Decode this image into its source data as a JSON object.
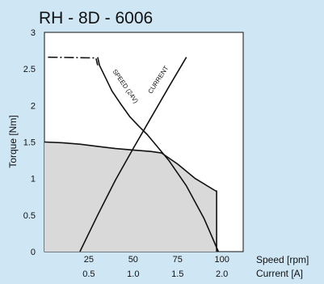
{
  "chart_data": {
    "type": "line",
    "title": "RH - 8D - 6006",
    "ylabel": "Torque [Nm]",
    "ylim": [
      0,
      3
    ],
    "yticks": [
      "0",
      "0.5",
      "1",
      "1.5",
      "2",
      "2.5",
      "3"
    ],
    "x_axes": [
      {
        "label": "Speed [rpm]",
        "range": [
          0,
          112
        ],
        "ticks": [
          25,
          50,
          75,
          100
        ]
      },
      {
        "label": "Current [A]",
        "range": [
          0,
          2.24
        ],
        "ticks": [
          "0.5",
          "1.0",
          "1.5",
          "2.0"
        ]
      }
    ],
    "grid": false,
    "series": [
      {
        "name": "SPEED (24V)",
        "axis": "Speed [rpm]",
        "x": [
          30,
          31,
          34,
          38,
          43,
          48,
          53,
          58,
          70,
          80,
          90,
          98
        ],
        "y": [
          2.66,
          2.55,
          2.4,
          2.2,
          2.02,
          1.85,
          1.72,
          1.6,
          1.25,
          0.9,
          0.45,
          0
        ]
      },
      {
        "name": "CURRENT",
        "axis": "Current [A]",
        "x": [
          0.4,
          0.6,
          0.8,
          1.0,
          1.2,
          1.4,
          1.6
        ],
        "y": [
          0,
          0.5,
          0.98,
          1.41,
          1.83,
          2.25,
          2.66
        ]
      },
      {
        "name": "",
        "style": "boundary",
        "axis": "Speed [rpm]",
        "x": [
          0,
          10,
          20,
          30,
          40,
          50,
          60,
          66,
          75,
          85,
          96.5,
          97,
          97
        ],
        "y": [
          1.5,
          1.49,
          1.47,
          1.44,
          1.41,
          1.39,
          1.37,
          1.35,
          1.2,
          1.0,
          0.83,
          0.83,
          0
        ]
      },
      {
        "name": "",
        "style": "peak-dashdot",
        "axis": "Speed [rpm]",
        "x": [
          2,
          29,
          30
        ],
        "y": [
          2.66,
          2.65,
          2.55
        ]
      }
    ]
  }
}
